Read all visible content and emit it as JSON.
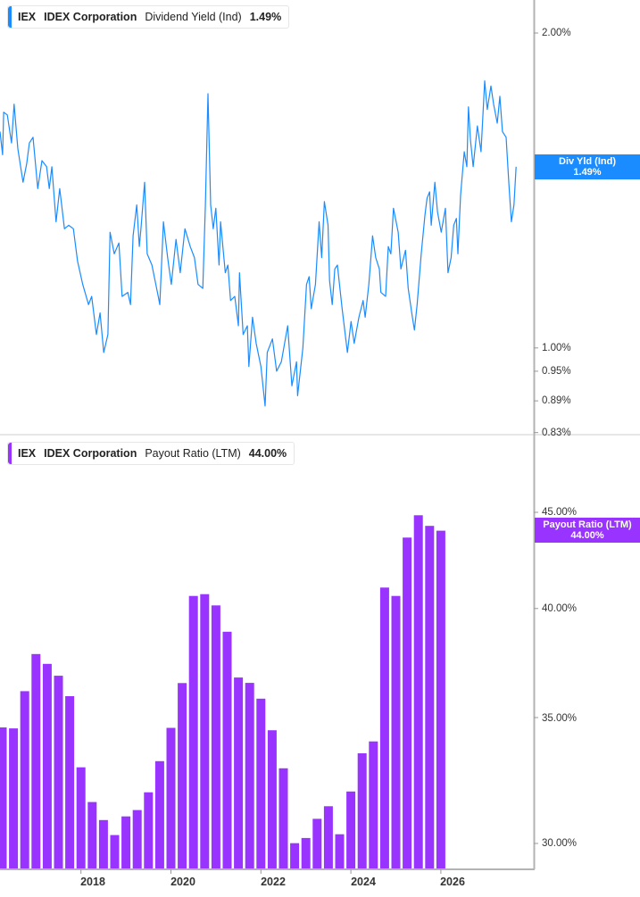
{
  "colors": {
    "yield_line": "#1a8cff",
    "payout_bars": "#9933ff",
    "axis": "#b3b3b3"
  },
  "top_legend": {
    "ticker": "IEX",
    "company": "IDEX Corporation",
    "metric": "Dividend Yield (Ind)",
    "value": "1.49%"
  },
  "bottom_legend": {
    "ticker": "IEX",
    "company": "IDEX Corporation",
    "metric": "Payout Ratio (LTM)",
    "value": "44.00%"
  },
  "top_badge": {
    "label": "Div Yld (Ind)",
    "value": "1.49%"
  },
  "bottom_badge": {
    "label": "Payout Ratio (LTM)",
    "value": "44.00%"
  },
  "x_ticks": [
    "2018",
    "2020",
    "2022",
    "2024",
    "2026"
  ],
  "chart_data": [
    {
      "type": "line",
      "series": [
        {
          "name": "Dividend Yield (Ind)",
          "unit": "%"
        }
      ],
      "y_scale": "log",
      "y_ticks": [
        "2.00%",
        "1.00%",
        "0.95%",
        "0.89%",
        "0.83%"
      ],
      "y_tick_values": [
        2.0,
        1.0,
        0.95,
        0.89,
        0.83
      ],
      "ylim": [
        0.83,
        2.1
      ],
      "x": [
        2016.25,
        2016.3,
        2016.32,
        2016.39,
        2016.47,
        2016.52,
        2016.59,
        2016.69,
        2016.76,
        2016.81,
        2016.88,
        2016.97,
        2017.05,
        2017.14,
        2017.19,
        2017.24,
        2017.32,
        2017.39,
        2017.48,
        2017.56,
        2017.65,
        2017.73,
        2017.83,
        2017.94,
        2018.0,
        2018.09,
        2018.16,
        2018.23,
        2018.31,
        2018.35,
        2018.43,
        2018.52,
        2018.58,
        2018.69,
        2018.74,
        2018.79,
        2018.86,
        2018.91,
        2018.94,
        2019.01,
        2019.06,
        2019.15,
        2019.27,
        2019.3,
        2019.37,
        2019.45,
        2019.52,
        2019.61,
        2019.69,
        2019.78,
        2019.88,
        2019.96,
        2020.03,
        2020.12,
        2020.17,
        2020.22,
        2020.27,
        2020.32,
        2020.37,
        2020.43,
        2020.46,
        2020.55,
        2020.6,
        2020.65,
        2020.73,
        2020.8,
        2020.82,
        2020.89,
        2020.97,
        2021.0,
        2021.07,
        2021.14,
        2021.23,
        2021.31,
        2021.35,
        2021.45,
        2021.53,
        2021.62,
        2021.74,
        2021.82,
        2021.91,
        2021.93,
        2022.03,
        2022.1,
        2022.15,
        2022.19,
        2022.27,
        2022.34,
        2022.39,
        2022.44,
        2022.51,
        2022.54,
        2022.59,
        2022.64,
        2022.69,
        2022.78,
        2022.88,
        2022.95,
        2023.01,
        2023.1,
        2023.18,
        2023.22,
        2023.29,
        2023.36,
        2023.42,
        2023.49,
        2023.52,
        2023.61,
        2023.66,
        2023.71,
        2023.76,
        2023.85,
        2023.9,
        2023.99,
        2024.04,
        2024.12,
        2024.16,
        2024.21,
        2024.29,
        2024.36,
        2024.4,
        2024.45,
        2024.48,
        2024.55,
        2024.6,
        2024.67,
        2024.75,
        2024.8,
        2024.86,
        2024.91,
        2024.96,
        2024.99,
        2025.04,
        2025.11,
        2025.16,
        2025.19,
        2025.23,
        2025.28,
        2025.36,
        2025.43,
        2025.5,
        2025.55,
        2025.62,
        2025.67,
        2025.74,
        2025.79,
        2025.84,
        2025.91,
        2025.96,
        2026.01,
        2026.06,
        2026.1
      ],
      "y": [
        1.61,
        1.53,
        1.68,
        1.67,
        1.57,
        1.71,
        1.55,
        1.44,
        1.5,
        1.57,
        1.59,
        1.42,
        1.51,
        1.49,
        1.42,
        1.49,
        1.32,
        1.42,
        1.3,
        1.31,
        1.3,
        1.21,
        1.15,
        1.1,
        1.12,
        1.03,
        1.08,
        0.99,
        1.03,
        1.29,
        1.23,
        1.26,
        1.12,
        1.13,
        1.1,
        1.28,
        1.37,
        1.25,
        1.3,
        1.44,
        1.23,
        1.2,
        1.12,
        1.1,
        1.32,
        1.22,
        1.15,
        1.27,
        1.18,
        1.3,
        1.25,
        1.22,
        1.15,
        1.14,
        1.37,
        1.75,
        1.37,
        1.3,
        1.36,
        1.2,
        1.32,
        1.18,
        1.2,
        1.11,
        1.12,
        1.05,
        1.18,
        1.03,
        1.05,
        0.96,
        1.07,
        1.01,
        0.96,
        0.88,
        0.99,
        1.02,
        0.95,
        0.97,
        1.05,
        0.92,
        0.97,
        0.9,
        1.0,
        1.15,
        1.17,
        1.09,
        1.15,
        1.32,
        1.22,
        1.38,
        1.31,
        1.16,
        1.1,
        1.19,
        1.2,
        1.09,
        0.99,
        1.06,
        1.01,
        1.07,
        1.11,
        1.07,
        1.15,
        1.28,
        1.22,
        1.19,
        1.13,
        1.12,
        1.25,
        1.23,
        1.36,
        1.29,
        1.19,
        1.24,
        1.14,
        1.07,
        1.04,
        1.1,
        1.23,
        1.34,
        1.39,
        1.41,
        1.31,
        1.44,
        1.35,
        1.29,
        1.36,
        1.18,
        1.22,
        1.31,
        1.33,
        1.23,
        1.4,
        1.54,
        1.49,
        1.7,
        1.58,
        1.49,
        1.63,
        1.54,
        1.8,
        1.69,
        1.78,
        1.71,
        1.64,
        1.74,
        1.61,
        1.59,
        1.44,
        1.32,
        1.37,
        1.49
      ]
    },
    {
      "type": "bar",
      "series": [
        {
          "name": "Payout Ratio (LTM)",
          "unit": "%"
        }
      ],
      "y_scale": "log",
      "y_ticks": [
        "45.00%",
        "40.00%",
        "35.00%",
        "30.00%"
      ],
      "y_tick_values": [
        45,
        40,
        35,
        30
      ],
      "ylim": [
        29.07,
        47
      ],
      "categories": [
        "2016 Q1",
        "2016 Q2",
        "2016 Q3",
        "2016 Q4",
        "2017 Q1",
        "2017 Q2",
        "2017 Q3",
        "2017 Q4",
        "2018 Q1",
        "2018 Q2",
        "2018 Q3",
        "2018 Q4",
        "2019 Q1",
        "2019 Q2",
        "2019 Q3",
        "2019 Q4",
        "2020 Q1",
        "2020 Q2",
        "2020 Q3",
        "2020 Q4",
        "2021 Q1",
        "2021 Q2",
        "2021 Q3",
        "2021 Q4",
        "2022 Q1",
        "2022 Q2",
        "2022 Q3",
        "2022 Q4",
        "2023 Q1",
        "2023 Q2",
        "2023 Q3",
        "2023 Q4",
        "2024 Q1",
        "2024 Q2",
        "2024 Q3",
        "2024 Q4",
        "2025 Q1",
        "2025 Q2",
        "2025 Q3",
        "2025 Q4"
      ],
      "x": [
        2016.25,
        2016.5,
        2016.75,
        2017.0,
        2017.25,
        2017.5,
        2017.75,
        2018.0,
        2018.25,
        2018.5,
        2018.75,
        2019.0,
        2019.25,
        2019.5,
        2019.75,
        2020.0,
        2020.25,
        2020.5,
        2020.75,
        2021.0,
        2021.25,
        2021.5,
        2021.75,
        2022.0,
        2022.25,
        2022.5,
        2022.75,
        2023.0,
        2023.25,
        2023.5,
        2023.75,
        2024.0,
        2024.25,
        2024.5,
        2024.75,
        2025.0,
        2025.25,
        2025.5,
        2025.75,
        2026.0
      ],
      "values": [
        34.58,
        34.54,
        36.15,
        37.83,
        37.38,
        36.84,
        35.93,
        32.93,
        31.56,
        30.87,
        30.31,
        31.01,
        31.25,
        31.94,
        33.18,
        34.56,
        36.51,
        40.62,
        40.71,
        40.15,
        38.88,
        36.76,
        36.52,
        35.82,
        34.46,
        32.89,
        30.01,
        30.2,
        30.92,
        31.4,
        30.34,
        31.97,
        33.5,
        33.99,
        41.04,
        40.62,
        43.63,
        44.84,
        44.26,
        44.0
      ]
    }
  ]
}
